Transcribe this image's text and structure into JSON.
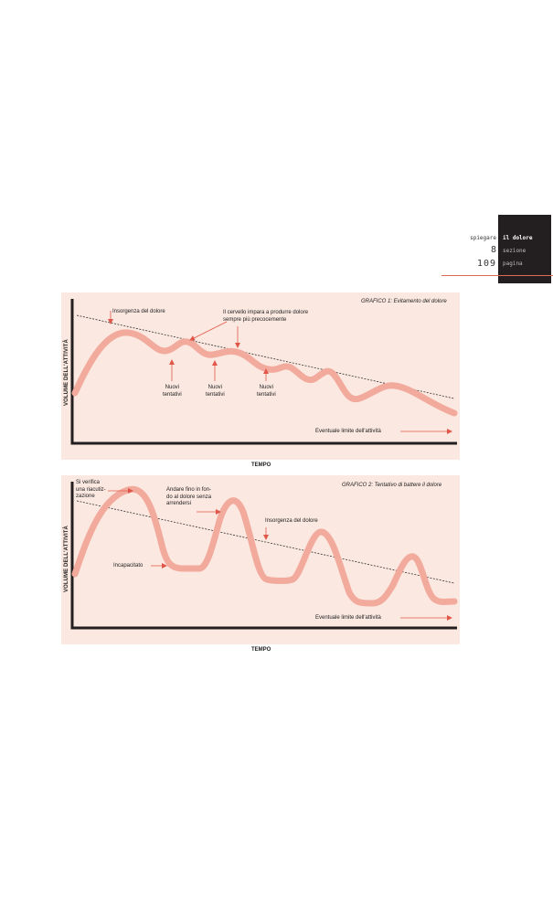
{
  "header": {
    "word_spiegare": "spiegare",
    "word_il_dolore": "il dolore",
    "section_number": "8",
    "section_label": "sezione",
    "page_number": "109",
    "page_label": "pagina"
  },
  "chart1": {
    "title": "GRAFICO 1: Evitamento del dolore",
    "ylabel": "VOLUME DELL'ATTIVITÀ",
    "xlabel": "TEMPO",
    "ann_insorgenza": "Insorgenza del dolore",
    "ann_cervello": "Il cervello impara a produrre dolore\nsempre più precocemente",
    "ann_tentativi_1": "Nuovi\ntentativi",
    "ann_tentativi_2": "Nuovi\ntentativi",
    "ann_tentativi_3": "Nuovi\ntentativi",
    "ann_limite": "Eventuale limite dell'attività"
  },
  "chart2": {
    "title": "GRAFICO 2: Tentativo di battere il dolore",
    "ylabel": "VOLUME DELL'ATTIVITÀ",
    "xlabel": "TEMPO",
    "ann_riacutizzazione": "Si verifica\nuna riacutiz-\nzazione",
    "ann_andare": "Andare fino in fon-\ndo al dolore senza\narrendersi",
    "ann_insorgenza": "Insorgenza del dolore",
    "ann_incapacitato": "Incapacitato",
    "ann_limite": "Eventuale limite dell'attività"
  },
  "colors": {
    "chart_bg": "#fbe8e1",
    "curve": "#f2aa9c",
    "arrow": "#e0574a",
    "axis": "#231f20",
    "header_box": "#231f20"
  }
}
